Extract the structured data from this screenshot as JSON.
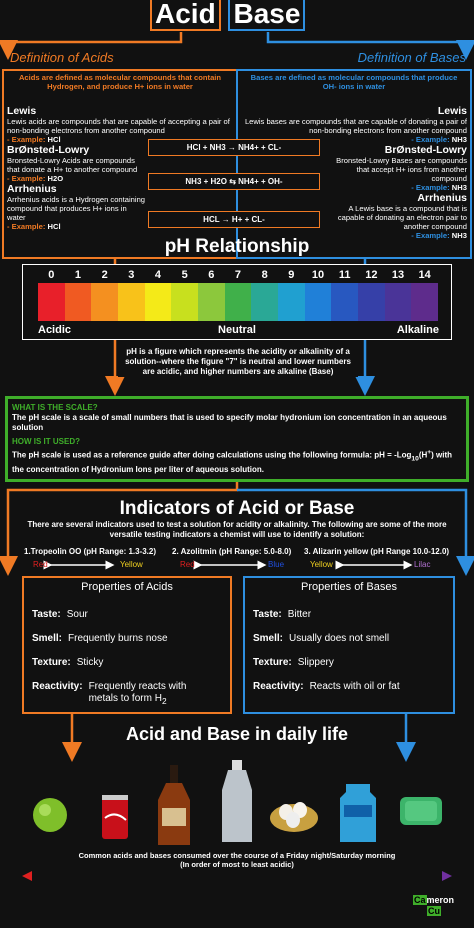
{
  "header": {
    "acid": "Acid",
    "base": "Base"
  },
  "definitions": {
    "acids": {
      "heading": "Definition of Acids",
      "intro": "Acids are defined as molecular compounds that contain Hydrogen, and produce H+ ions in water",
      "items": [
        {
          "name": "Lewis",
          "text": "Lewis acids are compounds that are capable of accepting a pair of non-bonding electrons from another compound",
          "example_label": "- Example:",
          "example": "HCl"
        },
        {
          "name": "BrØnsted-Lowry",
          "text": "Bronsted-Lowry Acids are compounds that donate a H+ to another compound",
          "example_label": "- Example:",
          "example": "H2O"
        },
        {
          "name": "Arrhenius",
          "text": "Arrhenius acids is a Hydrogen containing compound that produces H+ ions in water",
          "example_label": "- Example:",
          "example": "HCl"
        }
      ]
    },
    "bases": {
      "heading": "Definition of Bases",
      "intro": "Bases are defined as molecular compounds that produce OH- ions in water",
      "items": [
        {
          "name": "Lewis",
          "text": "Lewis bases are compounds that are capable of donating a pair of non-bonding electrons from another compound",
          "example_label": "- Example:",
          "example": "NH3"
        },
        {
          "name": "BrØnsted-Lowry",
          "text": "Bronsted-Lowry Bases are compounds that accept H+ ions from another compound",
          "example_label": "- Example:",
          "example": "NH3"
        },
        {
          "name": "Arrhenius",
          "text": "A Lewis base is a compound that is capable of donating an electron pair to another compound",
          "example_label": "- Example:",
          "example": "NH3"
        }
      ]
    },
    "reactions": [
      "HCl + NH3 → NH4+ + CL-",
      "NH3 + H2O ⇆ NH4+ + OH-",
      "HCL → H+ + CL-"
    ]
  },
  "ph": {
    "title": "pH Relationship",
    "scale": [
      0,
      1,
      2,
      3,
      4,
      5,
      6,
      7,
      8,
      9,
      10,
      11,
      12,
      13,
      14
    ],
    "labels": [
      "Acidic",
      "Neutral",
      "Alkaline"
    ],
    "description": "pH is a figure which represents the acidity or alkalinity of a solution--where the figure \"7\" is neutral and lower numbers are acidic, and  higher  numbers  are  alkaline (Base)"
  },
  "scale_info": {
    "q1": "WHAT IS THE SCALE?",
    "a1": "The pH scale is a scale of small numbers that is used to specify molar hydronium ion concentration in an aqueous solution",
    "q2": "HOW IS IT USED?",
    "a2": "The pH scale is used as a reference guide after doing calculations using the following formula: pH = -Log",
    "a2_sub": "10",
    "a2_arg": "(H",
    "a2_sup": "+",
    "a2_close": ")",
    "a2_end": " with the concentration of Hydronium Ions per liter of aqueous solution."
  },
  "indicators": {
    "title": "Indicators of Acid or Base",
    "intro": "There are several indicators used to test a solution for acidity or alkalinity.  The following are some of the more versatile testing indicators a chemist will use to identify a solution:",
    "items": [
      {
        "name": "1.Tropeolin OO (pH Range: 1.3-3.2)",
        "from": "Red",
        "to": "Yellow"
      },
      {
        "name": "2. Azolitmin (pH Range: 5.0-8.0)",
        "from": "Red",
        "to": "Blue"
      },
      {
        "name": "3. Alizarin yellow (pH Range 10.0-12.0)",
        "from": "Yellow",
        "to": "Lilac"
      }
    ]
  },
  "properties": {
    "acids": {
      "title": "Properties of Acids",
      "rows": [
        [
          "Taste:",
          "Sour"
        ],
        [
          "Smell:",
          "Frequently burns nose"
        ],
        [
          "Texture:",
          "Sticky"
        ],
        [
          "Reactivity:",
          "Frequently reacts with metals to form H",
          "2"
        ]
      ]
    },
    "bases": {
      "title": "Properties of Bases",
      "rows": [
        [
          "Taste:",
          "Bitter"
        ],
        [
          "Smell:",
          "Usually does not smell"
        ],
        [
          "Texture:",
          "Slippery"
        ],
        [
          "Reactivity:",
          "Reacts with oil or fat"
        ]
      ]
    }
  },
  "daily_life": {
    "title": "Acid and Base in daily life",
    "caption": [
      "Common acids and bases consumed over the course of a Friday night/Saturday morning",
      "(In order of most to least acidic)"
    ]
  },
  "credit": {
    "first": "Ca",
    "rest": "meron",
    "second": "Cu"
  }
}
